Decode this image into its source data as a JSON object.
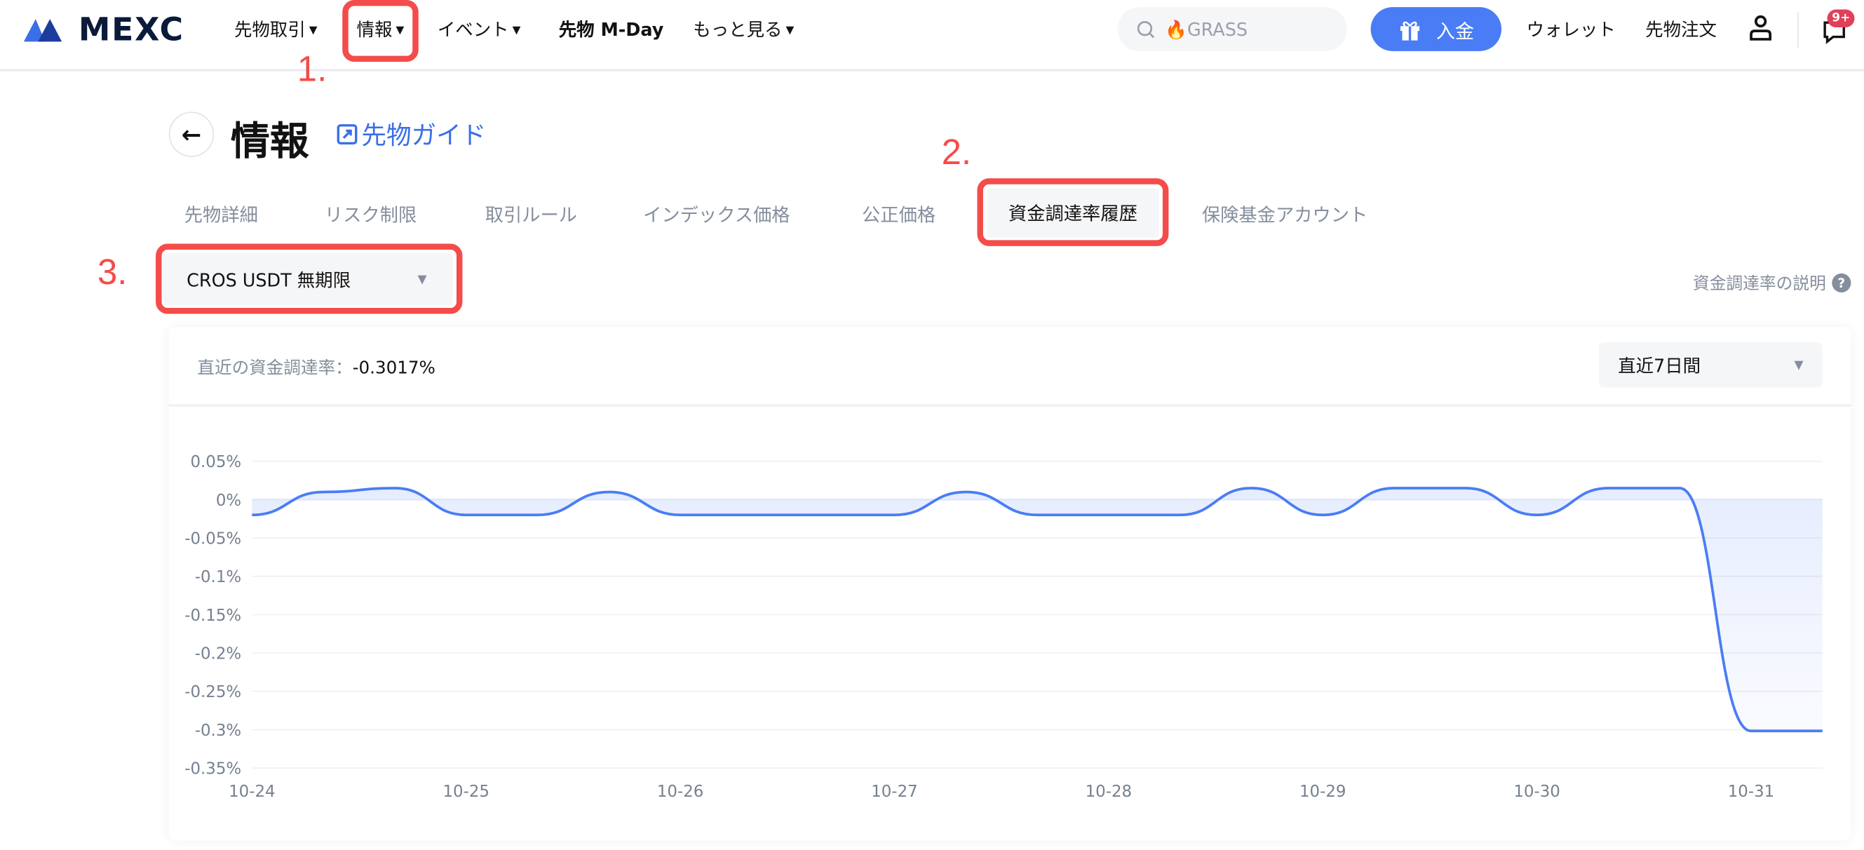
{
  "header": {
    "logo_text": "MEXC",
    "nav": [
      {
        "label": "先物取引",
        "has_caret": true
      },
      {
        "label": "情報",
        "has_caret": true
      },
      {
        "label": "イベント",
        "has_caret": true
      },
      {
        "label": "先物 M-Day",
        "has_caret": false
      },
      {
        "label": "もっと見る",
        "has_caret": true
      }
    ],
    "search_placeholder": "🔥GRASS",
    "deposit_label": "入金",
    "wallet_label": "ウォレット",
    "futures_orders_label": "先物注文",
    "notification_badge": "9+",
    "accent_color": "#4a7cf5"
  },
  "annotations": {
    "step1": "1.",
    "step2": "2.",
    "step3": "3.",
    "color": "#f44c4a"
  },
  "page": {
    "title": "情報",
    "guide_link": "先物ガイド",
    "tabs": [
      "先物詳細",
      "リスク制限",
      "取引ルール",
      "インデックス価格",
      "公正価格",
      "資金調達率履歴",
      "保険基金アカウント"
    ],
    "active_tab": "資金調達率履歴",
    "contract_select": "CROS USDT 無期限",
    "explain_link": "資金調達率の説明"
  },
  "card": {
    "latest_label": "直近の資金調達率：",
    "latest_value": "-0.3017%",
    "period_select": "直近7日間"
  },
  "chart_data": {
    "type": "area",
    "x": [
      "10-24 00:00",
      "10-24 08:00",
      "10-24 16:00",
      "10-25 00:00",
      "10-25 08:00",
      "10-25 16:00",
      "10-26 00:00",
      "10-26 08:00",
      "10-26 16:00",
      "10-27 00:00",
      "10-27 08:00",
      "10-27 16:00",
      "10-28 00:00",
      "10-28 08:00",
      "10-28 16:00",
      "10-29 00:00",
      "10-29 08:00",
      "10-29 16:00",
      "10-30 00:00",
      "10-30 08:00",
      "10-30 16:00",
      "10-31 00:00",
      "10-31 08:00"
    ],
    "series": [
      {
        "values": [
          -0.02,
          0.01,
          0.015,
          -0.02,
          -0.02,
          0.01,
          -0.02,
          -0.02,
          -0.02,
          -0.02,
          0.01,
          -0.02,
          -0.02,
          -0.02,
          0.015,
          -0.02,
          0.015,
          0.015,
          -0.02,
          0.015,
          0.015,
          -0.3017,
          -0.3017
        ],
        "color": "#4a7cf5"
      }
    ],
    "x_tick_labels": [
      "10-24",
      "10-25",
      "10-26",
      "10-27",
      "10-28",
      "10-29",
      "10-30",
      "10-31"
    ],
    "y_tick_labels": [
      "0.05%",
      "0%",
      "-0.05%",
      "-0.1%",
      "-0.15%",
      "-0.2%",
      "-0.25%",
      "-0.3%",
      "-0.35%"
    ],
    "y_ticks": [
      0.05,
      0,
      -0.05,
      -0.1,
      -0.15,
      -0.2,
      -0.25,
      -0.3,
      -0.35
    ],
    "ylim": [
      -0.35,
      0.05
    ],
    "xlim": [
      "10-24 00:00",
      "10-31 08:00"
    ],
    "grid": true,
    "unit": "%"
  }
}
